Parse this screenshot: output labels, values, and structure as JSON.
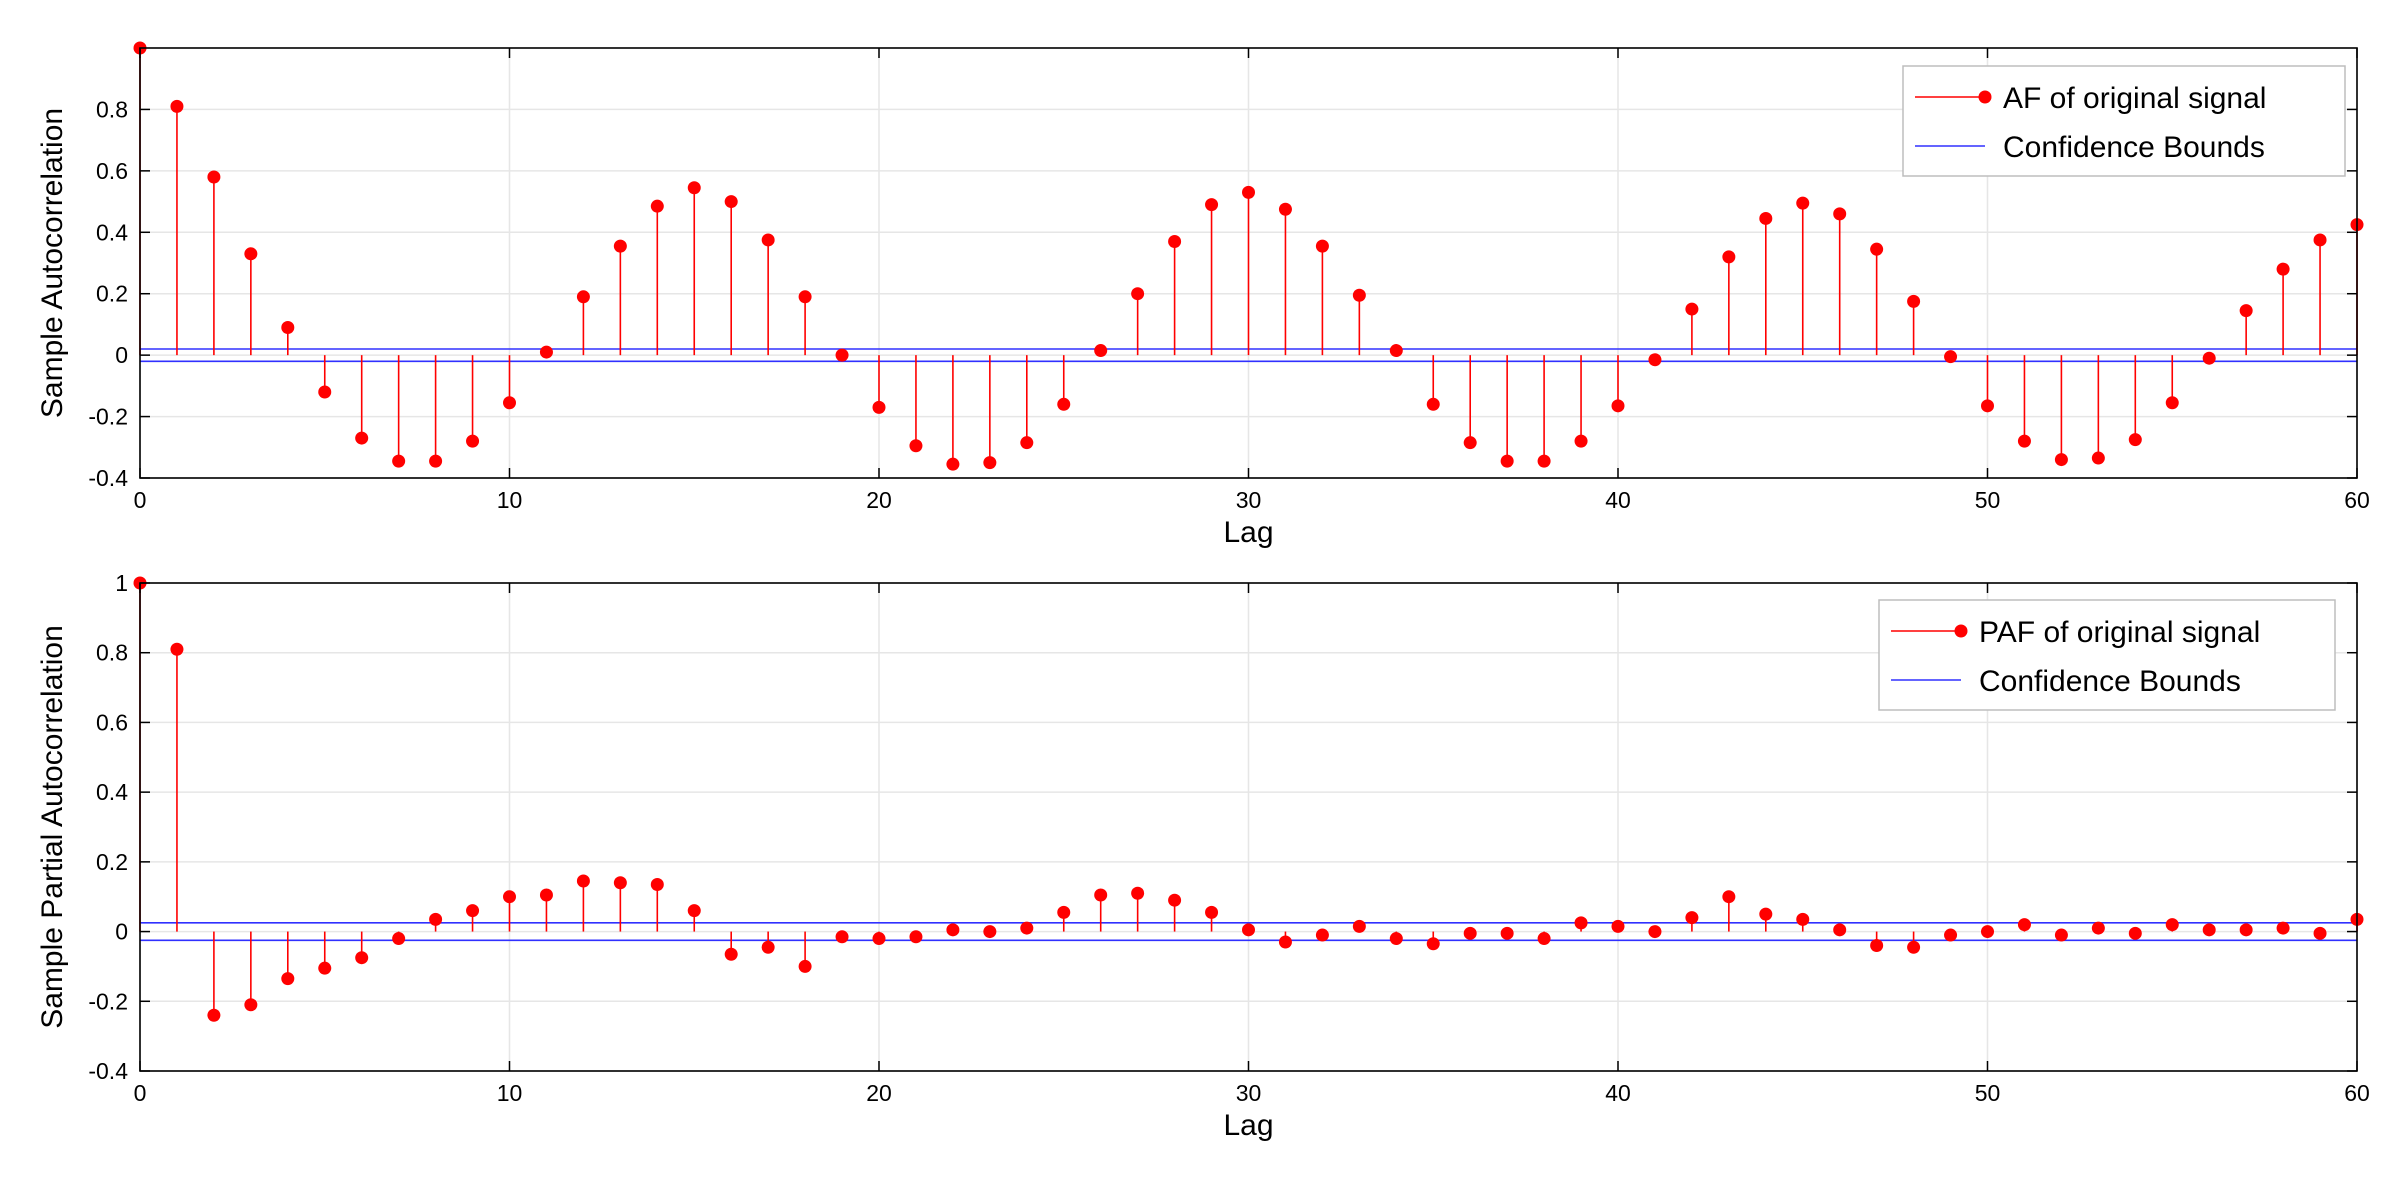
{
  "colors": {
    "stem": "#ff0000",
    "marker": "#ff0000",
    "bounds": "#3030ff",
    "grid": "#e6e6e6",
    "axis": "#000000"
  },
  "chart_data": [
    {
      "type": "stem",
      "xlabel": "Lag",
      "ylabel": "Sample Autocorrelation",
      "xlim": [
        0,
        60
      ],
      "ylim": [
        -0.4,
        1.0
      ],
      "xticks": [
        0,
        10,
        20,
        30,
        40,
        50,
        60
      ],
      "yticks": [
        -0.4,
        -0.2,
        0,
        0.2,
        0.4,
        0.6,
        0.8
      ],
      "grid": true,
      "legend_position": "top-right",
      "series": [
        {
          "name": "AF of original signal",
          "x": [
            0,
            1,
            2,
            3,
            4,
            5,
            6,
            7,
            8,
            9,
            10,
            11,
            12,
            13,
            14,
            15,
            16,
            17,
            18,
            19,
            20,
            21,
            22,
            23,
            24,
            25,
            26,
            27,
            28,
            29,
            30,
            31,
            32,
            33,
            34,
            35,
            36,
            37,
            38,
            39,
            40,
            41,
            42,
            43,
            44,
            45,
            46,
            47,
            48,
            49,
            50,
            51,
            52,
            53,
            54,
            55,
            56,
            57,
            58,
            59,
            60
          ],
          "y": [
            1.0,
            0.81,
            0.58,
            0.33,
            0.09,
            -0.12,
            -0.27,
            -0.345,
            -0.345,
            -0.28,
            -0.155,
            0.01,
            0.19,
            0.355,
            0.485,
            0.545,
            0.5,
            0.375,
            0.19,
            0.0,
            -0.17,
            -0.295,
            -0.355,
            -0.35,
            -0.285,
            -0.16,
            0.015,
            0.2,
            0.37,
            0.49,
            0.53,
            0.475,
            0.355,
            0.195,
            0.015,
            -0.16,
            -0.285,
            -0.345,
            -0.345,
            -0.28,
            -0.165,
            -0.015,
            0.15,
            0.32,
            0.445,
            0.495,
            0.46,
            0.345,
            0.175,
            -0.005,
            -0.165,
            -0.28,
            -0.34,
            -0.335,
            -0.275,
            -0.155,
            -0.01,
            0.145,
            0.28,
            0.375,
            0.425
          ]
        },
        {
          "name": "Confidence Bounds",
          "bounds": [
            0.02,
            -0.02
          ]
        }
      ]
    },
    {
      "type": "stem",
      "xlabel": "Lag",
      "ylabel": "Sample Partial Autocorrelation",
      "xlim": [
        0,
        60
      ],
      "ylim": [
        -0.4,
        1.0
      ],
      "xticks": [
        0,
        10,
        20,
        30,
        40,
        50,
        60
      ],
      "yticks": [
        -0.4,
        -0.2,
        0,
        0.2,
        0.4,
        0.6,
        0.8,
        1
      ],
      "grid": true,
      "legend_position": "top-right",
      "series": [
        {
          "name": "PAF of original signal",
          "x": [
            0,
            1,
            2,
            3,
            4,
            5,
            6,
            7,
            8,
            9,
            10,
            11,
            12,
            13,
            14,
            15,
            16,
            17,
            18,
            19,
            20,
            21,
            22,
            23,
            24,
            25,
            26,
            27,
            28,
            29,
            30,
            31,
            32,
            33,
            34,
            35,
            36,
            37,
            38,
            39,
            40,
            41,
            42,
            43,
            44,
            45,
            46,
            47,
            48,
            49,
            50,
            51,
            52,
            53,
            54,
            55,
            56,
            57,
            58,
            59,
            60
          ],
          "y": [
            1.0,
            0.81,
            -0.24,
            -0.21,
            -0.135,
            -0.105,
            -0.075,
            -0.02,
            0.035,
            0.06,
            0.1,
            0.105,
            0.145,
            0.14,
            0.135,
            0.06,
            -0.065,
            -0.045,
            -0.1,
            -0.015,
            -0.02,
            -0.015,
            0.005,
            0.0,
            0.01,
            0.055,
            0.105,
            0.11,
            0.09,
            0.055,
            0.005,
            -0.03,
            -0.01,
            0.015,
            -0.02,
            -0.035,
            -0.005,
            -0.005,
            -0.02,
            0.025,
            0.015,
            0.0,
            0.04,
            0.1,
            0.05,
            0.035,
            0.005,
            -0.04,
            -0.045,
            -0.01,
            0.0,
            0.02,
            -0.01,
            0.01,
            -0.005,
            0.02,
            0.005,
            0.005,
            0.01,
            -0.005,
            0.035
          ]
        },
        {
          "name": "Confidence Bounds",
          "bounds": [
            0.025,
            -0.025
          ]
        }
      ]
    }
  ]
}
